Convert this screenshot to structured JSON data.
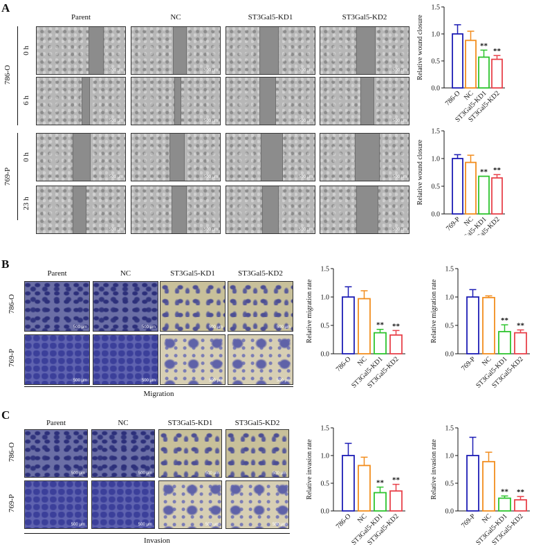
{
  "panels": {
    "a": {
      "letter": "A"
    },
    "b": {
      "letter": "B"
    },
    "c": {
      "letter": "C"
    }
  },
  "groups": [
    "Parent",
    "NC",
    "ST3Gal5-KD1",
    "ST3Gal5-KD2"
  ],
  "wound": {
    "cell_lines": [
      "786-O",
      "769-P"
    ],
    "timepoints_786": [
      "0 h",
      "6 h"
    ],
    "timepoints_769": [
      "0 h",
      "23 h"
    ]
  },
  "transwell": {
    "rows": [
      "786-O",
      "769-P"
    ],
    "migration_caption": "Migration",
    "invasion_caption": "Invasion"
  },
  "scale_bar": "500 μm",
  "colors": {
    "blue": "#1c1cb5",
    "orange": "#f28c1c",
    "green": "#2ec42e",
    "red": "#e8414a"
  },
  "chart_data": [
    {
      "id": "wound-786",
      "type": "bar",
      "ylabel": "Relative wound closure",
      "ylim": [
        0,
        1.5
      ],
      "yticks": [
        "0.0",
        "0.5",
        "1.0",
        "1.5"
      ],
      "categories": [
        "786-O",
        "NC",
        "ST3Gal5-KD1",
        "ST3Gal5-KD2"
      ],
      "values": [
        1.0,
        0.88,
        0.57,
        0.53
      ],
      "errors": [
        0.17,
        0.17,
        0.13,
        0.07
      ],
      "significance": [
        "",
        "",
        "**",
        "**"
      ]
    },
    {
      "id": "wound-769",
      "type": "bar",
      "ylabel": "Relative wound closure",
      "ylim": [
        0,
        1.5
      ],
      "yticks": [
        "0.0",
        "0.5",
        "1.0",
        "1.5"
      ],
      "categories": [
        "769-P",
        "NC",
        "ST3Gal5-KD1",
        "ST3Gal5-KD2"
      ],
      "values": [
        1.0,
        0.93,
        0.68,
        0.65
      ],
      "errors": [
        0.07,
        0.13,
        0.0,
        0.06
      ],
      "significance": [
        "",
        "",
        "**",
        "**"
      ]
    },
    {
      "id": "migration-786",
      "type": "bar",
      "ylabel": "Relative migration rate",
      "ylim": [
        0,
        1.5
      ],
      "yticks": [
        "0.0",
        "0.5",
        "1.0",
        "1.5"
      ],
      "categories": [
        "786-O",
        "NC",
        "ST3Gal5-KD1",
        "ST3Gal5-KD2"
      ],
      "values": [
        1.0,
        0.97,
        0.37,
        0.33
      ],
      "errors": [
        0.18,
        0.14,
        0.06,
        0.08
      ],
      "significance": [
        "",
        "",
        "**",
        "**"
      ]
    },
    {
      "id": "migration-769",
      "type": "bar",
      "ylabel": "Relative migration rate",
      "ylim": [
        0,
        1.5
      ],
      "yticks": [
        "0.0",
        "0.5",
        "1.0",
        "1.5"
      ],
      "categories": [
        "769-P",
        "NC",
        "ST3Gal5-KD1",
        "ST3Gal5-KD2"
      ],
      "values": [
        1.0,
        0.99,
        0.39,
        0.37
      ],
      "errors": [
        0.13,
        0.03,
        0.12,
        0.05
      ],
      "significance": [
        "",
        "",
        "**",
        "**"
      ]
    },
    {
      "id": "invasion-786",
      "type": "bar",
      "ylabel": "Relative invasion rate",
      "ylim": [
        0,
        1.5
      ],
      "yticks": [
        "0.0",
        "0.5",
        "1.0",
        "1.5"
      ],
      "categories": [
        "786-O",
        "NC",
        "ST3Gal5-KD1",
        "ST3Gal5-KD2"
      ],
      "values": [
        1.0,
        0.82,
        0.33,
        0.36
      ],
      "errors": [
        0.22,
        0.15,
        0.1,
        0.12
      ],
      "significance": [
        "",
        "",
        "**",
        "**"
      ]
    },
    {
      "id": "invasion-769",
      "type": "bar",
      "ylabel": "Relative invasion rate",
      "ylim": [
        0,
        1.5
      ],
      "yticks": [
        "0.0",
        "0.5",
        "1.0",
        "1.5"
      ],
      "categories": [
        "769-P",
        "NC",
        "ST3Gal5-KD1",
        "ST3Gal5-KD2"
      ],
      "values": [
        1.0,
        0.89,
        0.23,
        0.2
      ],
      "errors": [
        0.33,
        0.17,
        0.04,
        0.06
      ],
      "significance": [
        "",
        "",
        "**",
        "**"
      ]
    }
  ]
}
